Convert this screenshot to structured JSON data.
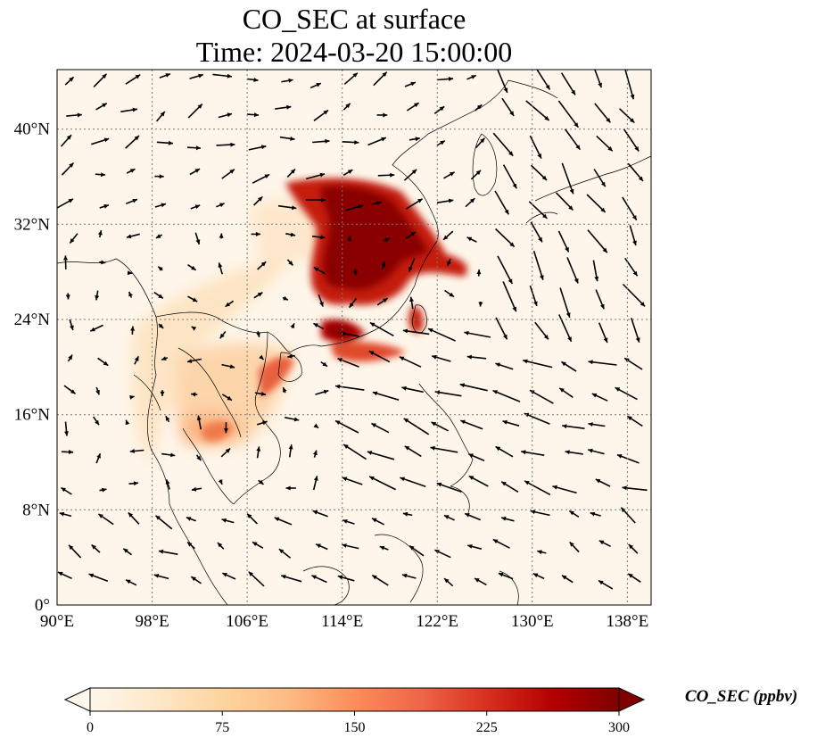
{
  "title_line1": "CO_SEC at surface",
  "title_line2": "Time: 2024-03-20 15:00:00",
  "map": {
    "lon_range": [
      90,
      140
    ],
    "lat_range": [
      0,
      45
    ],
    "lon_ticks": [
      90,
      98,
      106,
      114,
      122,
      130,
      138
    ],
    "lon_tick_labels": [
      "90°E",
      "98°E",
      "106°E",
      "114°E",
      "122°E",
      "130°E",
      "138°E"
    ],
    "lat_ticks": [
      0,
      8,
      16,
      24,
      32,
      40
    ],
    "lat_tick_labels": [
      "0°",
      "8°N",
      "16°N",
      "24°N",
      "32°N",
      "40°N"
    ],
    "gridlines": "dotted",
    "colormap": "OrRd",
    "wind_vectors": true
  },
  "colorbar": {
    "label": "CO_SEC (ppbv)",
    "min": 0,
    "max": 300,
    "ticks": [
      0,
      75,
      150,
      225,
      300
    ],
    "tick_labels": [
      "0",
      "75",
      "150",
      "225",
      "300"
    ],
    "extend": "both",
    "colors": [
      "#fff7ec",
      "#fee8c8",
      "#fdd49e",
      "#fdbb84",
      "#fc8d59",
      "#ef6548",
      "#d7301f",
      "#b30000",
      "#7f0000"
    ]
  }
}
